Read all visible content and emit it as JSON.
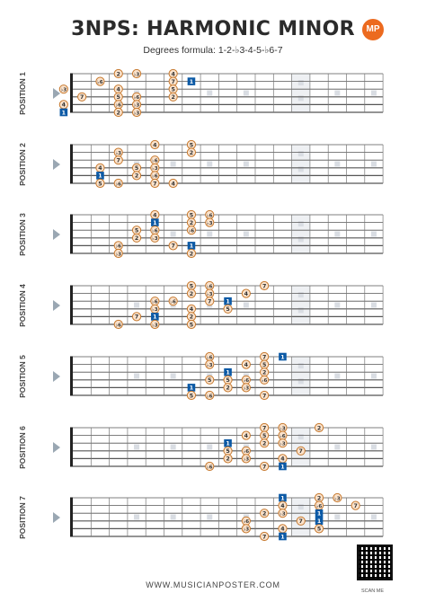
{
  "title": "3NPS: HARMONIC MINOR",
  "subtitle": "Degrees formula: 1-2-♭3-4-5-♭6-7",
  "logo_text": "MP",
  "footer": "WWW.MUSICIANPOSTER.COM",
  "scan_label": "SCAN ME",
  "colors": {
    "note_fill": "#fbe3cc",
    "note_stroke": "#c6782d",
    "root_fill": "#0c5aa6",
    "inlay": "#d9dde3",
    "accent": "#ec6a1f"
  },
  "positions": [
    {
      "label": "POSITION 1",
      "notes": [
        {
          "s": 1,
          "f": 3,
          "d": "2"
        },
        {
          "s": 1,
          "f": 4,
          "d": "♭3"
        },
        {
          "s": 1,
          "f": 6,
          "d": "4"
        },
        {
          "s": 2,
          "f": 2,
          "d": "♭6"
        },
        {
          "s": 2,
          "f": 6,
          "d": "7"
        },
        {
          "s": 2,
          "f": 7,
          "d": "1",
          "root": true
        },
        {
          "s": 3,
          "f": 0,
          "d": "♭3"
        },
        {
          "s": 3,
          "f": 3,
          "d": "4"
        },
        {
          "s": 3,
          "f": 6,
          "d": "5"
        },
        {
          "s": 4,
          "f": 1,
          "d": "7"
        },
        {
          "s": 4,
          "f": 3,
          "d": "5"
        },
        {
          "s": 4,
          "f": 4,
          "d": "♭6"
        },
        {
          "s": 4,
          "f": 6,
          "d": "2"
        },
        {
          "s": 5,
          "f": 0,
          "d": "4"
        },
        {
          "s": 5,
          "f": 3,
          "d": "♭6"
        },
        {
          "s": 5,
          "f": 4,
          "d": "♭3"
        },
        {
          "s": 6,
          "f": 0,
          "d": "1",
          "root": true
        },
        {
          "s": 6,
          "f": 3,
          "d": "2"
        },
        {
          "s": 6,
          "f": 4,
          "d": "♭3"
        }
      ]
    },
    {
      "label": "POSITION 2",
      "notes": [
        {
          "s": 1,
          "f": 5,
          "d": "4"
        },
        {
          "s": 1,
          "f": 7,
          "d": "5"
        },
        {
          "s": 2,
          "f": 3,
          "d": "♭3"
        },
        {
          "s": 2,
          "f": 7,
          "d": "2"
        },
        {
          "s": 3,
          "f": 3,
          "d": "7"
        },
        {
          "s": 3,
          "f": 5,
          "d": "♭6"
        },
        {
          "s": 4,
          "f": 2,
          "d": "4"
        },
        {
          "s": 4,
          "f": 4,
          "d": "5"
        },
        {
          "s": 4,
          "f": 5,
          "d": "♭3"
        },
        {
          "s": 5,
          "f": 2,
          "d": "1",
          "root": true
        },
        {
          "s": 5,
          "f": 4,
          "d": "2"
        },
        {
          "s": 5,
          "f": 5,
          "d": "♭6"
        },
        {
          "s": 6,
          "f": 2,
          "d": "5"
        },
        {
          "s": 6,
          "f": 3,
          "d": "♭6"
        },
        {
          "s": 6,
          "f": 5,
          "d": "7"
        },
        {
          "s": 6,
          "f": 6,
          "d": "4"
        }
      ]
    },
    {
      "label": "POSITION 3",
      "notes": [
        {
          "s": 1,
          "f": 5,
          "d": "4"
        },
        {
          "s": 1,
          "f": 7,
          "d": "5"
        },
        {
          "s": 1,
          "f": 8,
          "d": "♭6"
        },
        {
          "s": 2,
          "f": 5,
          "d": "1",
          "root": true
        },
        {
          "s": 2,
          "f": 7,
          "d": "2"
        },
        {
          "s": 2,
          "f": 8,
          "d": "♭3"
        },
        {
          "s": 3,
          "f": 4,
          "d": "5"
        },
        {
          "s": 3,
          "f": 5,
          "d": "♭6"
        },
        {
          "s": 3,
          "f": 7,
          "d": "♭6"
        },
        {
          "s": 4,
          "f": 4,
          "d": "2"
        },
        {
          "s": 4,
          "f": 5,
          "d": "♭3"
        },
        {
          "s": 5,
          "f": 3,
          "d": "♭6"
        },
        {
          "s": 5,
          "f": 6,
          "d": "7"
        },
        {
          "s": 5,
          "f": 7,
          "d": "1",
          "root": true
        },
        {
          "s": 6,
          "f": 3,
          "d": "♭3"
        },
        {
          "s": 6,
          "f": 7,
          "d": "2"
        }
      ]
    },
    {
      "label": "POSITION 4",
      "notes": [
        {
          "s": 1,
          "f": 7,
          "d": "5"
        },
        {
          "s": 1,
          "f": 8,
          "d": "♭6"
        },
        {
          "s": 1,
          "f": 11,
          "d": "7"
        },
        {
          "s": 2,
          "f": 7,
          "d": "2"
        },
        {
          "s": 2,
          "f": 8,
          "d": "♭3"
        },
        {
          "s": 2,
          "f": 10,
          "d": "4"
        },
        {
          "s": 3,
          "f": 5,
          "d": "♭6"
        },
        {
          "s": 3,
          "f": 6,
          "d": "♭6"
        },
        {
          "s": 3,
          "f": 8,
          "d": "7"
        },
        {
          "s": 3,
          "f": 9,
          "d": "1",
          "root": true
        },
        {
          "s": 4,
          "f": 5,
          "d": "♭3"
        },
        {
          "s": 4,
          "f": 7,
          "d": "4"
        },
        {
          "s": 4,
          "f": 9,
          "d": "5"
        },
        {
          "s": 5,
          "f": 4,
          "d": "7"
        },
        {
          "s": 5,
          "f": 5,
          "d": "1",
          "root": true
        },
        {
          "s": 5,
          "f": 7,
          "d": "2"
        },
        {
          "s": 6,
          "f": 3,
          "d": "♭6"
        },
        {
          "s": 6,
          "f": 5,
          "d": "♭3"
        },
        {
          "s": 6,
          "f": 7,
          "d": "5"
        }
      ]
    },
    {
      "label": "POSITION 5",
      "notes": [
        {
          "s": 1,
          "f": 8,
          "d": "♭6"
        },
        {
          "s": 1,
          "f": 11,
          "d": "7"
        },
        {
          "s": 1,
          "f": 12,
          "d": "1",
          "root": true
        },
        {
          "s": 2,
          "f": 8,
          "d": "♭3"
        },
        {
          "s": 2,
          "f": 10,
          "d": "4"
        },
        {
          "s": 2,
          "f": 11,
          "d": "5"
        },
        {
          "s": 3,
          "f": 9,
          "d": "1",
          "root": true
        },
        {
          "s": 3,
          "f": 11,
          "d": "2"
        },
        {
          "s": 4,
          "f": 8,
          "d": "5"
        },
        {
          "s": 4,
          "f": 9,
          "d": "5"
        },
        {
          "s": 4,
          "f": 10,
          "d": "♭6"
        },
        {
          "s": 4,
          "f": 11,
          "d": "♭6"
        },
        {
          "s": 5,
          "f": 7,
          "d": "1",
          "root": true
        },
        {
          "s": 5,
          "f": 9,
          "d": "2"
        },
        {
          "s": 5,
          "f": 10,
          "d": "♭3"
        },
        {
          "s": 6,
          "f": 7,
          "d": "5"
        },
        {
          "s": 6,
          "f": 8,
          "d": "♭6"
        },
        {
          "s": 6,
          "f": 11,
          "d": "7"
        }
      ]
    },
    {
      "label": "POSITION 6",
      "notes": [
        {
          "s": 1,
          "f": 11,
          "d": "7"
        },
        {
          "s": 1,
          "f": 12,
          "d": "♭3"
        },
        {
          "s": 1,
          "f": 14,
          "d": "2"
        },
        {
          "s": 2,
          "f": 10,
          "d": "4"
        },
        {
          "s": 2,
          "f": 11,
          "d": "5"
        },
        {
          "s": 2,
          "f": 12,
          "d": "♭6"
        },
        {
          "s": 3,
          "f": 9,
          "d": "1",
          "root": true
        },
        {
          "s": 3,
          "f": 11,
          "d": "2"
        },
        {
          "s": 3,
          "f": 12,
          "d": "♭3"
        },
        {
          "s": 4,
          "f": 9,
          "d": "5"
        },
        {
          "s": 4,
          "f": 10,
          "d": "♭6"
        },
        {
          "s": 4,
          "f": 13,
          "d": "7"
        },
        {
          "s": 5,
          "f": 9,
          "d": "2"
        },
        {
          "s": 5,
          "f": 10,
          "d": "♭3"
        },
        {
          "s": 5,
          "f": 12,
          "d": "4"
        },
        {
          "s": 6,
          "f": 8,
          "d": "♭6"
        },
        {
          "s": 6,
          "f": 11,
          "d": "7"
        },
        {
          "s": 6,
          "f": 12,
          "d": "1",
          "root": true
        }
      ]
    },
    {
      "label": "POSITION 7",
      "notes": [
        {
          "s": 1,
          "f": 12,
          "d": "1",
          "root": true
        },
        {
          "s": 1,
          "f": 14,
          "d": "2"
        },
        {
          "s": 1,
          "f": 15,
          "d": "♭3"
        },
        {
          "s": 2,
          "f": 12,
          "d": "4"
        },
        {
          "s": 2,
          "f": 14,
          "d": "♭6"
        },
        {
          "s": 2,
          "f": 16,
          "d": "7"
        },
        {
          "s": 3,
          "f": 11,
          "d": "2"
        },
        {
          "s": 3,
          "f": 12,
          "d": "♭3"
        },
        {
          "s": 3,
          "f": 14,
          "d": "1",
          "root": true
        },
        {
          "s": 4,
          "f": 10,
          "d": "♭6"
        },
        {
          "s": 4,
          "f": 13,
          "d": "7"
        },
        {
          "s": 4,
          "f": 14,
          "d": "1",
          "root": true
        },
        {
          "s": 5,
          "f": 10,
          "d": "♭3"
        },
        {
          "s": 5,
          "f": 12,
          "d": "4"
        },
        {
          "s": 5,
          "f": 14,
          "d": "5"
        },
        {
          "s": 6,
          "f": 11,
          "d": "7"
        },
        {
          "s": 6,
          "f": 12,
          "d": "1",
          "root": true
        }
      ]
    }
  ]
}
